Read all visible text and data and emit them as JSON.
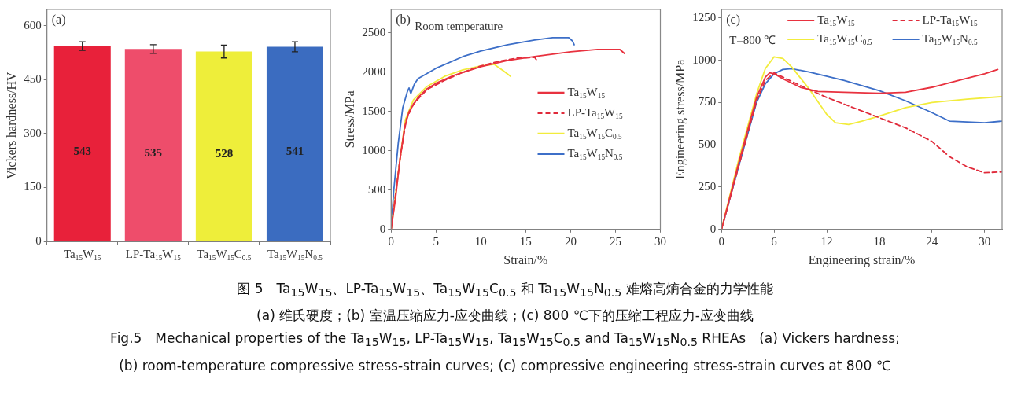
{
  "chart_data": [
    {
      "type": "bar",
      "ylabel": "Vickers hardness/HV",
      "categories": [
        "Ta$_{15}$W$_{15}$",
        "LP-Ta$_{15}$W$_{15}$",
        "Ta$_{15}$W$_{15}$C$_{0.5}$",
        "Ta$_{15}$W$_{15}$N$_{0.5}$"
      ],
      "values": [
        543,
        535,
        528,
        541
      ],
      "colors": [
        "#e8213a",
        "#ee4d6b",
        "#eeee3a",
        "#3b6cc0"
      ],
      "errors": [
        12,
        12,
        18,
        14
      ],
      "ylim": [
        0,
        645
      ],
      "yticks": [
        0,
        150,
        300,
        450,
        600
      ],
      "data_labels": true,
      "grid": false,
      "annotations": [
        "(a)"
      ]
    },
    {
      "type": "line",
      "xlabel": "Strain/%",
      "ylabel": "Stress/MPa",
      "xlim": [
        0,
        30
      ],
      "xticks": [
        0,
        5,
        10,
        15,
        20,
        25,
        30
      ],
      "ylim": [
        0,
        2800
      ],
      "yticks": [
        0,
        500,
        1000,
        1500,
        2000,
        2500
      ],
      "grid": false,
      "legend": "right",
      "marker": "none",
      "annotations": [
        "(b)",
        "Room temperature"
      ],
      "series": [
        {
          "name": "Ta$_{15}$W$_{15}$",
          "color": "#e8323f",
          "line_style": "solid",
          "x": [
            0,
            0.5,
            1,
            1.5,
            2,
            3,
            4,
            5,
            7,
            10,
            13,
            16,
            20,
            23,
            25.5,
            26
          ],
          "values": [
            0,
            400,
            900,
            1300,
            1500,
            1680,
            1790,
            1860,
            1960,
            2070,
            2150,
            2200,
            2260,
            2290,
            2290,
            2240
          ]
        },
        {
          "name": "LP-Ta$_{15}$W$_{15}$",
          "color": "#e02a3a",
          "line_style": "dashed",
          "x": [
            0,
            1,
            1.7,
            2.5,
            4,
            6,
            8,
            10,
            12,
            14,
            16,
            16.3
          ],
          "values": [
            0,
            900,
            1400,
            1600,
            1780,
            1900,
            2000,
            2080,
            2140,
            2180,
            2190,
            2140
          ]
        },
        {
          "name": "Ta$_{15}$W$_{15}$C$_{0.5}$",
          "color": "#f2ec3c",
          "line_style": "solid",
          "x": [
            0,
            1,
            1.6,
            2.5,
            4,
            6,
            8,
            10,
            11.5,
            12.5,
            13.3
          ],
          "values": [
            0,
            900,
            1400,
            1650,
            1820,
            1950,
            2030,
            2080,
            2100,
            2020,
            1950
          ]
        },
        {
          "name": "Ta$_{15}$W$_{15}$N$_{0.5}$",
          "color": "#3d6fc8",
          "line_style": "solid",
          "x": [
            0,
            0.3,
            0.8,
            1.3,
            1.8,
            2,
            2.2,
            2.6,
            3,
            5,
            8,
            10,
            13,
            16,
            18,
            19.8,
            20.2,
            20.4
          ],
          "values": [
            0,
            500,
            1100,
            1550,
            1750,
            1800,
            1730,
            1850,
            1920,
            2050,
            2200,
            2270,
            2350,
            2410,
            2440,
            2440,
            2400,
            2350
          ]
        }
      ]
    },
    {
      "type": "line",
      "xlabel": "Engineering strain/%",
      "ylabel": "Engineering stress/MPa",
      "xlim": [
        0,
        32
      ],
      "xticks": [
        0,
        6,
        12,
        18,
        24,
        30
      ],
      "ylim": [
        0,
        1300
      ],
      "yticks": [
        0,
        250,
        500,
        750,
        1000,
        1250
      ],
      "grid": false,
      "legend": "top right",
      "marker": "none",
      "annotations": [
        "(c)",
        "T=800 ℃"
      ],
      "series": [
        {
          "name": "Ta$_{15}$W$_{15}$",
          "color": "#e8323f",
          "line_style": "solid",
          "x": [
            0,
            2,
            4,
            5,
            5.5,
            6,
            7,
            9,
            11,
            14,
            18,
            21,
            24,
            27,
            30,
            31.5
          ],
          "values": [
            0,
            400,
            780,
            900,
            925,
            920,
            890,
            840,
            815,
            810,
            805,
            810,
            840,
            880,
            920,
            945
          ]
        },
        {
          "name": "LP-Ta$_{15}$W$_{15}$",
          "color": "#e02a3a",
          "line_style": "dashed",
          "x": [
            0,
            4,
            5,
            6,
            7,
            9,
            12,
            15,
            18,
            21,
            24,
            26,
            28,
            30,
            32
          ],
          "values": [
            0,
            760,
            880,
            925,
            900,
            850,
            780,
            720,
            660,
            600,
            520,
            430,
            370,
            335,
            340
          ]
        },
        {
          "name": "Ta$_{15}$W$_{15}$C$_{0.5}$",
          "color": "#f2ec3c",
          "line_style": "solid",
          "x": [
            0,
            2,
            4,
            5,
            6,
            7,
            8,
            10,
            12,
            13,
            14.5,
            16,
            18,
            21,
            24,
            28,
            32
          ],
          "values": [
            0,
            420,
            800,
            950,
            1020,
            1010,
            960,
            830,
            680,
            630,
            620,
            640,
            670,
            720,
            750,
            770,
            785
          ]
        },
        {
          "name": "Ta$_{15}$W$_{15}$N$_{0.5}$",
          "color": "#3d6fc8",
          "line_style": "solid",
          "x": [
            0,
            2,
            4,
            5,
            6,
            7,
            8,
            10,
            14,
            18,
            21,
            24,
            26,
            28,
            30,
            32
          ],
          "values": [
            0,
            380,
            750,
            860,
            920,
            945,
            950,
            930,
            880,
            820,
            760,
            690,
            640,
            635,
            630,
            640
          ]
        }
      ]
    },
    {
      "type": "other",
      "annotations": [
        "图 5　Ta$_{15}$W$_{15}$、LP-Ta$_{15}$W$_{15}$、Ta$_{15}$W$_{15}$C$_{0.5}$ 和 Ta$_{15}$W$_{15}$N$_{0.5}$ 难熔高熵合金的力学性能",
        "(a) 维氏硬度；(b) 室温压缩应力-应变曲线；(c) 800 ℃下的压缩工程应力-应变曲线",
        "Fig.5　Mechanical properties of the Ta$_{15}$W$_{15}$, LP-Ta$_{15}$W$_{15}$, Ta$_{15}$W$_{15}$C$_{0.5}$ and Ta$_{15}$W$_{15}$N$_{0.5}$ RHEAs　(a) Vickers hardness;",
        "(b) room-temperature compressive stress-strain curves; (c) compressive engineering stress-strain curves at 800 ℃"
      ]
    }
  ]
}
